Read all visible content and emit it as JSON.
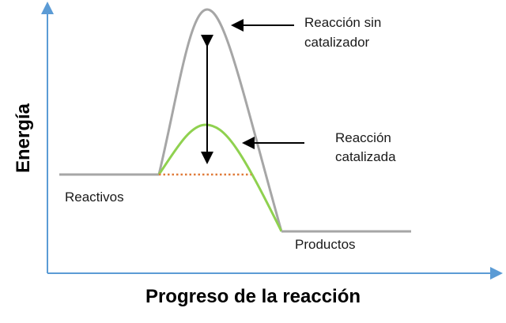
{
  "axes": {
    "x_label": "Progreso de la reacción",
    "y_label": "Energía",
    "axis_color": "#5b9bd5"
  },
  "curves": {
    "uncatalyzed_color": "#a6a6a6",
    "catalyzed_color": "#8fd14f",
    "baseline_color": "#a6a6a6",
    "dotted_color": "#e07b39",
    "arrow_color": "#000000"
  },
  "labels": {
    "uncatalyzed_line1": "Reacción sin",
    "uncatalyzed_line2": "catalizador",
    "catalyzed_line1": "Reacción",
    "catalyzed_line2": "catalizada",
    "reactants": "Reactivos",
    "products": "Productos"
  }
}
